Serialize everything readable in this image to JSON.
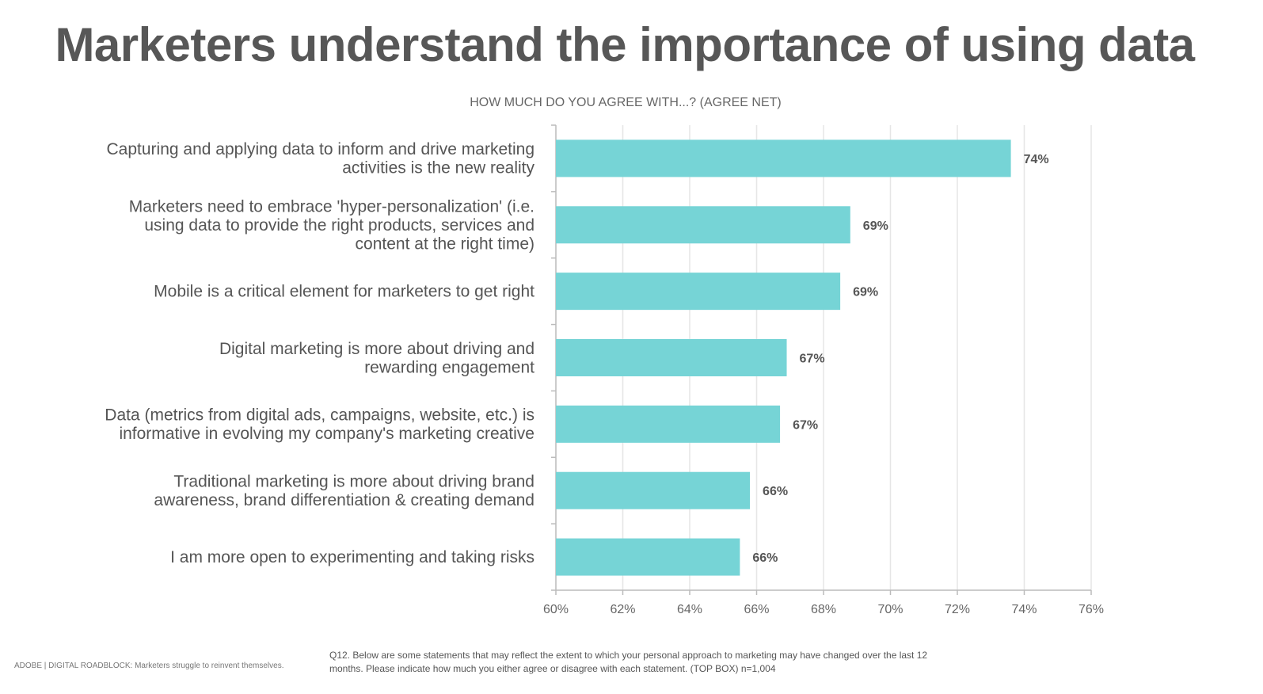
{
  "title": "Marketers understand the importance of using data",
  "footer": {
    "source": "ADOBE | DIGITAL ROADBLOCK: Marketers struggle to reinvent themselves.",
    "note": "Q12. Below are some statements that may reflect the extent to which your personal approach to marketing may have changed over the last 12 months. Please indicate how much you either agree or disagree with each statement. (TOP BOX) n=1,004"
  },
  "chart_data": {
    "type": "bar",
    "orientation": "horizontal",
    "title": "HOW MUCH DO YOU AGREE WITH...? (AGREE NET)",
    "categories": [
      [
        "Capturing and applying data to inform and drive marketing",
        "activities is the new reality"
      ],
      [
        "Marketers need to embrace 'hyper-personalization' (i.e.",
        "using data to provide the right products, services and",
        "content at the right time)"
      ],
      [
        "Mobile is a critical element for marketers to get right"
      ],
      [
        "Digital marketing is more about driving and",
        "rewarding engagement"
      ],
      [
        "Data (metrics from digital ads, campaigns, website, etc.) is",
        "informative in evolving my company's marketing creative"
      ],
      [
        "Traditional marketing is more about driving brand",
        "awareness, brand differentiation & creating demand"
      ],
      [
        "I am more open to experimenting and taking risks"
      ]
    ],
    "values": [
      73.6,
      68.8,
      68.5,
      66.9,
      66.7,
      65.8,
      65.5
    ],
    "data_labels": [
      "74%",
      "69%",
      "69%",
      "67%",
      "67%",
      "66%",
      "66%"
    ],
    "xlim": [
      60,
      76
    ],
    "xticks": [
      "60%",
      "62%",
      "64%",
      "66%",
      "68%",
      "70%",
      "72%",
      "74%",
      "76%"
    ],
    "grid": true,
    "bar_color": "#76d4d6"
  }
}
